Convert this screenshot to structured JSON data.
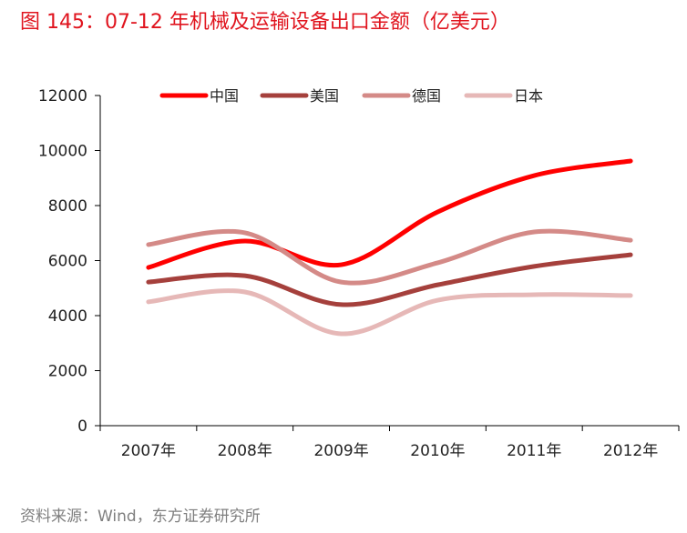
{
  "chart_data": {
    "type": "line",
    "title": "图 145：07-12 年机械及运输设备出口金额（亿美元）",
    "source": "资料来源：Wind，东方证券研究所",
    "categories": [
      "2007年",
      "2008年",
      "2009年",
      "2010年",
      "2011年",
      "2012年"
    ],
    "ylim": [
      0,
      12000
    ],
    "yticks": [
      "0",
      "2000",
      "4000",
      "6000",
      "8000",
      "10000",
      "12000"
    ],
    "grid": false,
    "legend_position": "top",
    "smooth": true,
    "series": [
      {
        "name": "中国",
        "color": "#ff0000",
        "values": [
          5750,
          6710,
          5850,
          7770,
          9090,
          9620
        ]
      },
      {
        "name": "美国",
        "color": "#a5403c",
        "values": [
          5220,
          5450,
          4400,
          5120,
          5790,
          6210
        ]
      },
      {
        "name": "德国",
        "color": "#d48a87",
        "values": [
          6580,
          7010,
          5220,
          5920,
          7040,
          6740
        ]
      },
      {
        "name": "日本",
        "color": "#e6b8b7",
        "values": [
          4500,
          4860,
          3340,
          4560,
          4760,
          4730
        ]
      }
    ]
  }
}
